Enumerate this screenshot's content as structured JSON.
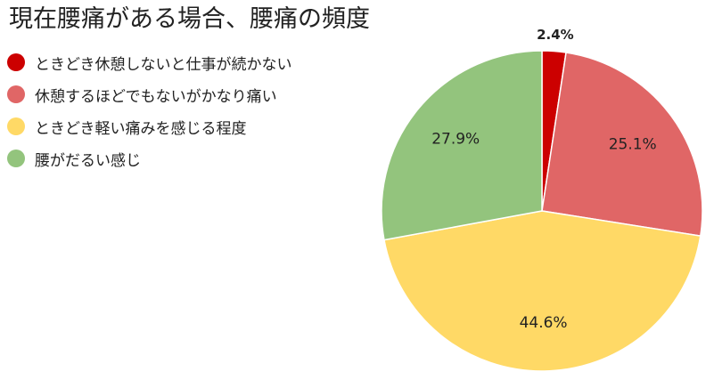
{
  "chart_data": {
    "type": "pie",
    "title": "現在腰痛がある場合、腰痛の頻度",
    "legend_position": "left",
    "start_angle": "12 o'clock",
    "direction": "clockwise",
    "slices": [
      {
        "label": "ときどき休憩しないと仕事が続かない",
        "value": 2.4,
        "display": "2.4%",
        "color": "#cc0000"
      },
      {
        "label": "休憩するほどでもないがかなり痛い",
        "value": 25.1,
        "display": "25.1%",
        "color": "#e06666"
      },
      {
        "label": "ときどき軽い痛みを感じる程度",
        "value": 44.6,
        "display": "44.6%",
        "color": "#ffd966"
      },
      {
        "label": "腰がだるい感じ",
        "value": 27.9,
        "display": "27.9%",
        "color": "#93c47d"
      }
    ]
  }
}
